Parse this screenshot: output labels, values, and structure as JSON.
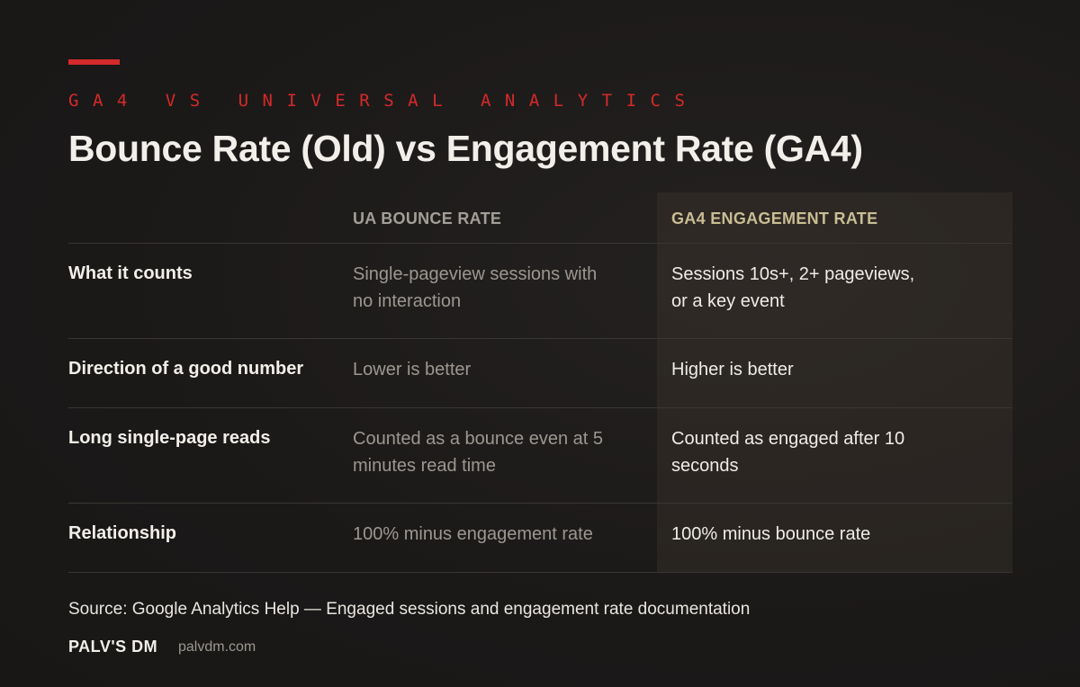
{
  "eyebrow": "GA4 VS UNIVERSAL ANALYTICS",
  "title": "Bounce Rate (Old) vs Engagement Rate (GA4)",
  "table": {
    "headers": {
      "label": "",
      "ua": "UA BOUNCE RATE",
      "ga4": "GA4 ENGAGEMENT RATE"
    },
    "rows": [
      {
        "label": "What it counts",
        "ua": [
          "Single-pageview sessions with",
          "no interaction"
        ],
        "ga4": [
          "Sessions 10s+, 2+ pageviews,",
          "or a key event"
        ]
      },
      {
        "label": "Direction of a good number",
        "ua": [
          "Lower is better"
        ],
        "ga4": [
          "Higher is better"
        ]
      },
      {
        "label": "Long single-page reads",
        "ua": [
          "Counted as a bounce even at 5",
          "minutes read time"
        ],
        "ga4": [
          "Counted as engaged after 10",
          "seconds"
        ]
      },
      {
        "label": "Relationship",
        "ua": [
          "100% minus engagement rate"
        ],
        "ga4": [
          "100% minus bounce rate"
        ]
      }
    ]
  },
  "source": "Source: Google Analytics Help — Engaged sessions and engagement rate documentation",
  "brand": {
    "name": "PALV'S DM",
    "url": "palvdm.com"
  },
  "colors": {
    "accent": "#d42a2a",
    "ga4_header": "#c9bd93",
    "background": "#1c1a19"
  }
}
